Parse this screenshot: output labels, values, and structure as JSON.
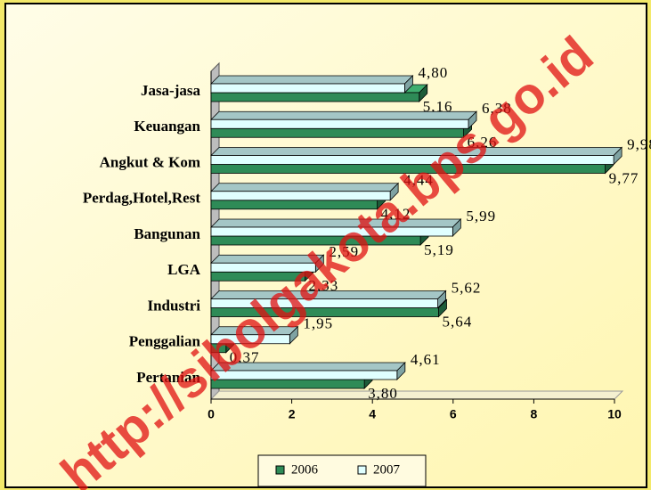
{
  "chart_data": {
    "type": "bar3d_horizontal",
    "watermark": "http://sibolgakota.bps.go.id",
    "categories": [
      "Jasa-jasa",
      "Keuangan",
      "Angkut & Kom",
      "Perdag,Hotel,Rest",
      "Bangunan",
      "LGA",
      "Industri",
      "Penggalian",
      "Pertanian"
    ],
    "series": [
      {
        "name": "2006",
        "color": "#2e8b57",
        "values": [
          5.16,
          6.26,
          9.77,
          4.12,
          5.19,
          2.33,
          5.64,
          0.37,
          3.8
        ],
        "value_labels": [
          "5,16",
          "6,26",
          "9,77",
          "4,12",
          "5,19",
          "2,33",
          "5,64",
          "0,37",
          "3,80"
        ]
      },
      {
        "name": "2007",
        "color": "#e0ffff",
        "values": [
          4.8,
          6.38,
          9.98,
          4.44,
          5.99,
          2.59,
          5.62,
          1.95,
          4.61
        ],
        "value_labels": [
          "4,80",
          "6,38",
          "9,98",
          "4,44",
          "5,99",
          "2,59",
          "5,62",
          "1,95",
          "4,61"
        ]
      }
    ],
    "xlim": [
      0,
      10
    ],
    "xticks": [
      0,
      2,
      4,
      6,
      8,
      10
    ],
    "legend": "bottom"
  }
}
